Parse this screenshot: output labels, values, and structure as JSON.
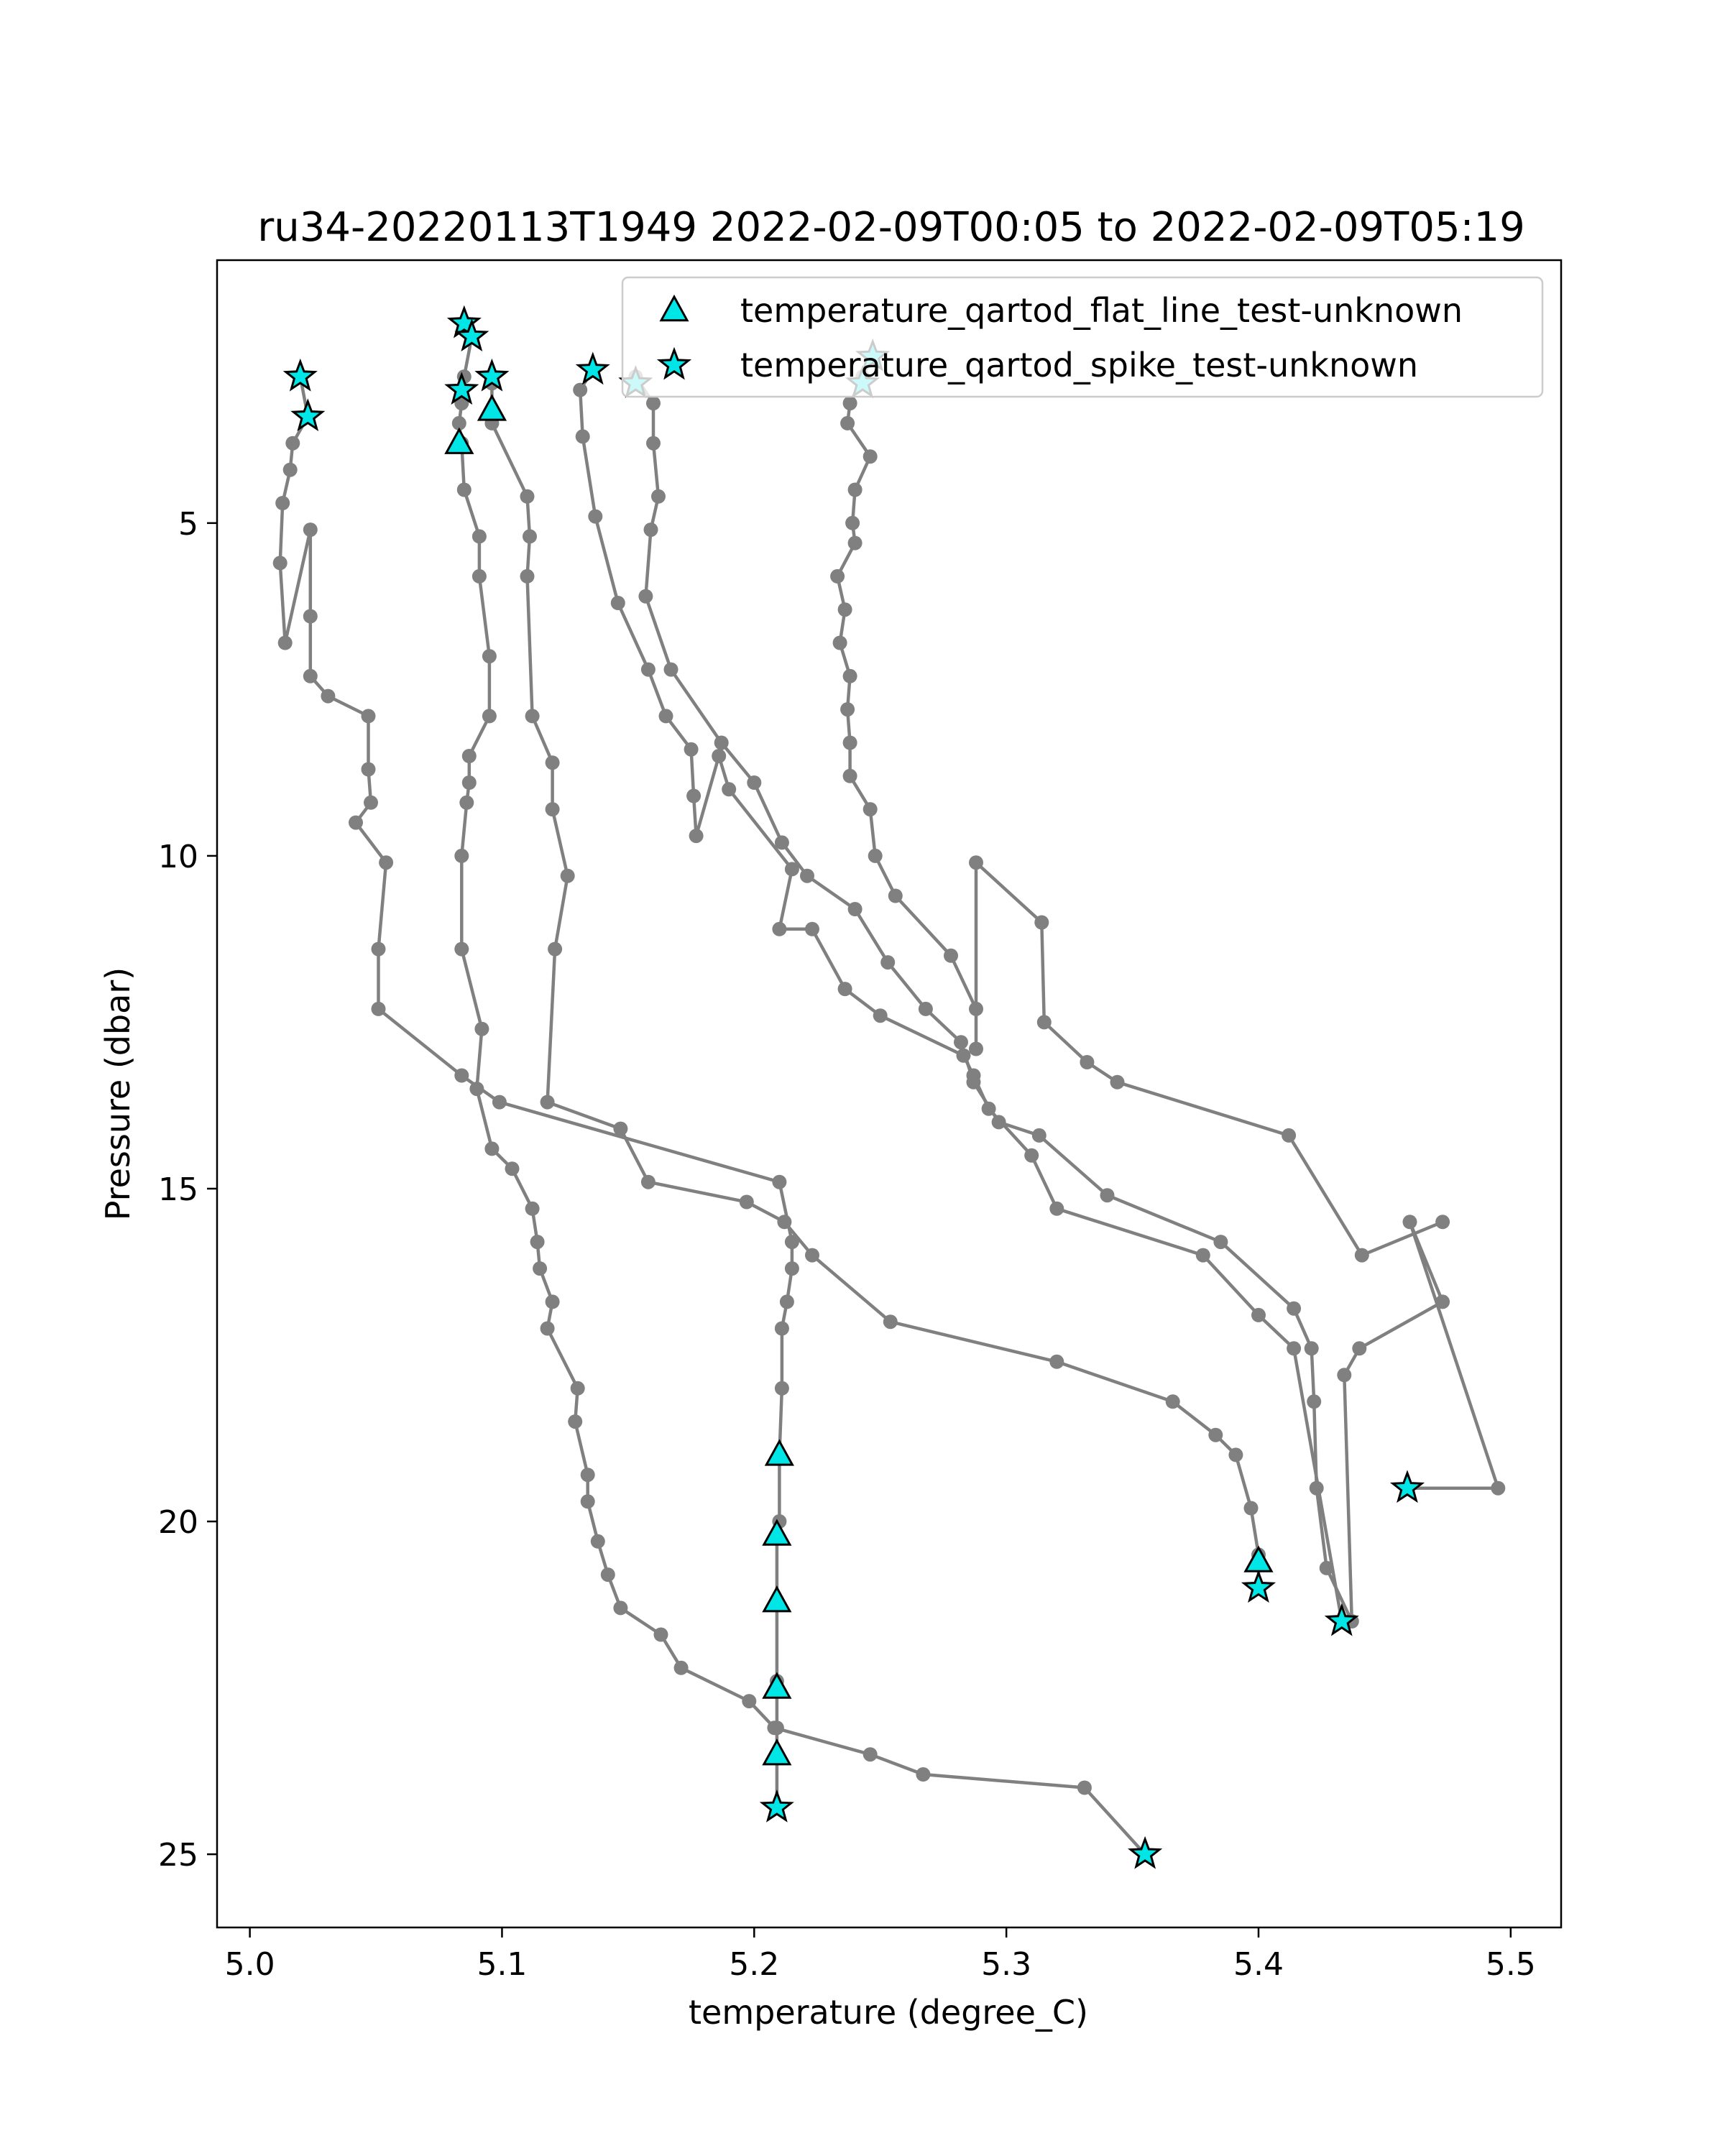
{
  "chart_data": {
    "type": "line",
    "title": "ru34-20220113T1949 2022-02-09T00:05 to 2022-02-09T05:19",
    "xlabel": "temperature (degree_C)",
    "ylabel": "Pressure (dbar)",
    "xlim": [
      4.987,
      5.52
    ],
    "ylim": [
      26.1,
      1.05
    ],
    "y_inverted": true,
    "xticks": [
      5.0,
      5.1,
      5.2,
      5.3,
      5.4,
      5.5
    ],
    "xtick_labels": [
      "5.0",
      "5.1",
      "5.2",
      "5.3",
      "5.4",
      "5.5"
    ],
    "yticks": [
      5,
      10,
      15,
      20,
      25
    ],
    "ytick_labels": [
      "5",
      "10",
      "15",
      "20",
      "25"
    ],
    "grid": false,
    "legend_position": "upper right",
    "colors": {
      "line": "#808080",
      "marker_fill": "#00e5e5",
      "marker_edge": "#000000"
    },
    "series": [
      {
        "x": [
          5.02,
          5.023,
          5.017,
          5.016,
          5.013,
          5.012,
          5.014,
          5.024,
          5.024,
          5.024,
          5.031,
          5.047,
          5.047,
          5.048,
          5.042,
          5.054,
          5.051,
          5.051,
          5.084,
          5.099,
          5.21,
          5.215,
          5.215,
          5.213,
          5.211,
          5.211,
          5.21,
          5.21,
          5.209,
          5.209,
          5.209,
          5.209,
          5.209,
          5.209,
          5.209
        ],
        "y": [
          2.8,
          3.4,
          3.8,
          4.2,
          4.7,
          5.6,
          6.8,
          5.1,
          6.4,
          7.3,
          7.6,
          7.9,
          8.7,
          9.2,
          9.5,
          10.1,
          11.4,
          12.3,
          13.3,
          13.7,
          14.9,
          15.8,
          16.2,
          16.7,
          17.1,
          18.0,
          19.0,
          20.0,
          20.2,
          21.2,
          22.4,
          22.5,
          23.1,
          23.5,
          24.3
        ]
      },
      {
        "x": [
          5.085,
          5.088,
          5.085,
          5.084,
          5.084,
          5.083,
          5.084,
          5.085,
          5.091,
          5.091,
          5.095,
          5.095,
          5.087,
          5.087,
          5.086,
          5.084,
          5.084,
          5.092,
          5.09,
          5.096,
          5.104,
          5.112,
          5.114,
          5.115,
          5.12,
          5.118,
          5.13,
          5.129,
          5.134,
          5.134,
          5.138,
          5.142,
          5.147,
          5.163,
          5.171,
          5.198,
          5.208,
          5.246,
          5.267,
          5.331,
          5.355
        ],
        "y": [
          2.0,
          2.2,
          2.8,
          3.0,
          3.2,
          3.5,
          3.8,
          4.5,
          5.2,
          5.8,
          7.0,
          7.9,
          8.5,
          8.9,
          9.2,
          10.0,
          11.4,
          12.6,
          13.5,
          14.4,
          14.7,
          15.3,
          15.8,
          16.2,
          16.7,
          17.1,
          18.0,
          18.5,
          19.3,
          19.7,
          20.3,
          20.8,
          21.3,
          21.7,
          22.2,
          22.7,
          23.1,
          23.5,
          23.8,
          24.0,
          25.0
        ]
      },
      {
        "x": [
          5.096,
          5.096,
          5.11,
          5.111,
          5.11,
          5.112,
          5.12,
          5.12,
          5.126,
          5.121,
          5.118,
          5.147,
          5.158,
          5.197,
          5.212,
          5.223,
          5.254,
          5.32,
          5.366,
          5.383,
          5.391,
          5.397,
          5.4,
          5.4
        ],
        "y": [
          2.9,
          3.5,
          4.6,
          5.2,
          5.8,
          7.9,
          8.6,
          9.3,
          10.3,
          11.4,
          13.7,
          14.1,
          14.9,
          15.2,
          15.5,
          16.0,
          17.0,
          17.6,
          18.2,
          18.7,
          19.0,
          19.8,
          20.5,
          21.0
        ]
      },
      {
        "x": [
          5.136,
          5.131,
          5.132,
          5.137,
          5.146,
          5.158,
          5.165,
          5.175,
          5.176,
          5.177,
          5.186,
          5.19,
          5.215,
          5.21,
          5.223,
          5.236,
          5.25,
          5.283,
          5.287,
          5.293,
          5.31,
          5.32,
          5.378,
          5.4,
          5.414,
          5.433
        ],
        "y": [
          2.7,
          3.0,
          3.7,
          4.9,
          6.2,
          7.2,
          7.9,
          8.4,
          9.1,
          9.7,
          8.5,
          9.0,
          10.2,
          11.1,
          11.1,
          12.0,
          12.4,
          13.0,
          13.3,
          13.8,
          14.5,
          15.3,
          16.0,
          16.9,
          17.4,
          21.5
        ]
      },
      {
        "x": [
          5.153,
          5.16,
          5.16,
          5.162,
          5.159,
          5.157,
          5.167,
          5.187,
          5.2,
          5.211,
          5.221,
          5.24,
          5.253,
          5.268,
          5.282,
          5.287,
          5.297,
          5.313,
          5.34,
          5.385,
          5.414,
          5.421,
          5.422,
          5.423,
          5.427,
          5.437,
          5.434,
          5.44,
          5.473,
          5.46,
          5.495,
          5.459
        ],
        "y": [
          2.8,
          3.2,
          3.8,
          4.6,
          5.1,
          6.1,
          7.2,
          8.3,
          8.9,
          9.8,
          10.3,
          10.8,
          11.6,
          12.3,
          12.8,
          13.4,
          14.0,
          14.2,
          15.1,
          15.8,
          16.8,
          17.4,
          18.2,
          19.5,
          20.7,
          21.5,
          17.8,
          17.4,
          16.7,
          15.5,
          19.5,
          19.5
        ]
      },
      {
        "x": [
          5.247,
          5.243,
          5.238,
          5.237,
          5.246,
          5.24,
          5.239,
          5.24,
          5.233,
          5.236,
          5.234,
          5.238,
          5.237,
          5.238,
          5.238,
          5.246,
          5.248,
          5.256,
          5.278,
          5.288,
          5.288,
          5.288,
          5.314,
          5.315,
          5.332,
          5.344,
          5.412,
          5.441,
          5.473
        ],
        "y": [
          2.5,
          2.8,
          3.2,
          3.5,
          4.0,
          4.5,
          5.0,
          5.3,
          5.8,
          6.3,
          6.8,
          7.3,
          7.8,
          8.3,
          8.8,
          9.3,
          10.0,
          10.6,
          11.5,
          12.3,
          12.9,
          10.1,
          11.0,
          12.5,
          13.1,
          13.4,
          14.2,
          16.0,
          15.5
        ]
      }
    ],
    "legend": [
      {
        "marker": "triangle",
        "label": "temperature_qartod_flat_line_test-unknown"
      },
      {
        "marker": "star",
        "label": "temperature_qartod_spike_test-unknown"
      }
    ],
    "flat_line_flags": {
      "x": [
        5.096,
        5.083,
        5.21,
        5.209,
        5.209,
        5.209,
        5.209,
        5.4
      ],
      "y": [
        3.3,
        3.8,
        19.0,
        20.2,
        21.2,
        22.5,
        23.5,
        20.6
      ]
    },
    "spike_flags": {
      "x": [
        5.02,
        5.023,
        5.085,
        5.088,
        5.084,
        5.096,
        5.136,
        5.153,
        5.247,
        5.243,
        5.209,
        5.355,
        5.4,
        5.433,
        5.459
      ],
      "y": [
        2.8,
        3.4,
        2.0,
        2.2,
        3.0,
        2.8,
        2.7,
        2.9,
        2.5,
        2.9,
        24.3,
        25.0,
        21.0,
        21.5,
        19.5
      ]
    }
  }
}
